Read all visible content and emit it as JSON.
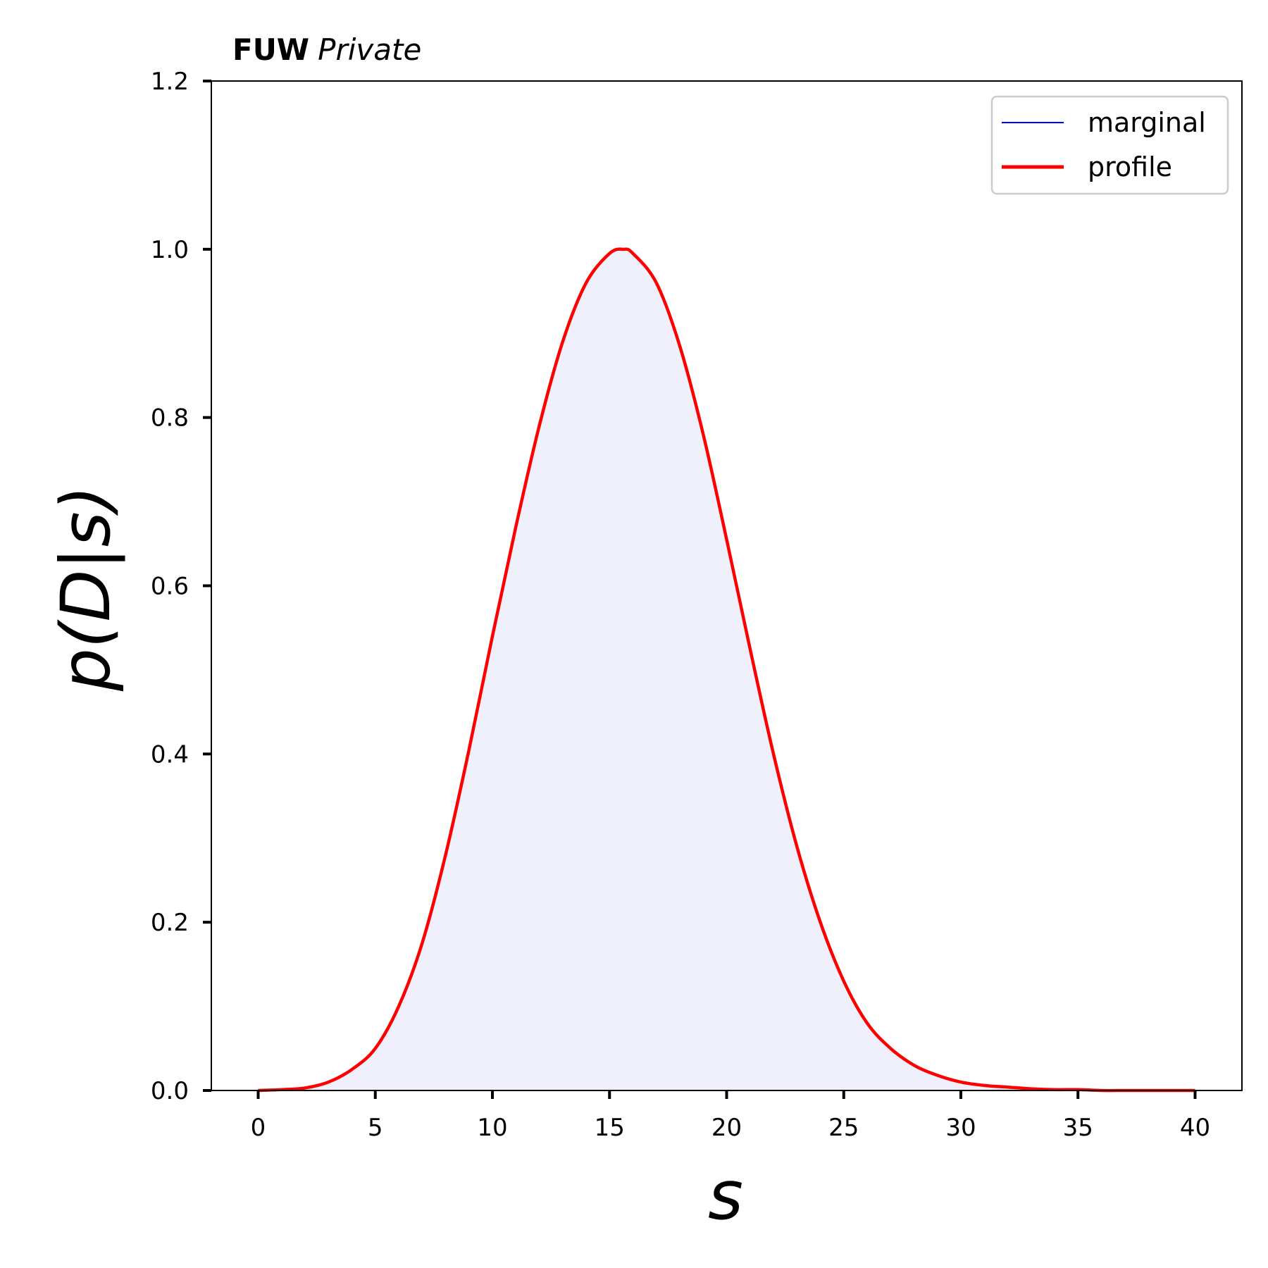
{
  "header": {
    "bold": "FUW",
    "italic": "Private"
  },
  "colors": {
    "marginal": "#0000ff",
    "profile": "#ff0000",
    "fill": "#f0f0fc"
  },
  "chart_data": {
    "type": "line",
    "xlabel": "s",
    "ylabel": "p(D|s)",
    "xlim": [
      -2,
      42
    ],
    "ylim": [
      0,
      1.2
    ],
    "xticks": [
      "0",
      "5",
      "10",
      "15",
      "20",
      "25",
      "30",
      "35",
      "40"
    ],
    "yticks": [
      "0.0",
      "0.2",
      "0.4",
      "0.6",
      "0.8",
      "1.0",
      "1.2"
    ],
    "legend": {
      "position": "upper right",
      "entries": [
        "marginal",
        "profile"
      ]
    },
    "grid": false,
    "series": [
      {
        "name": "marginal",
        "x": [
          0,
          1,
          2,
          3,
          4,
          5,
          6,
          7,
          8,
          9,
          10,
          11,
          12,
          13,
          14,
          15,
          15.6,
          16,
          17,
          18,
          19,
          20,
          21,
          22,
          23,
          24,
          25,
          26,
          27,
          28,
          29,
          30,
          31,
          32,
          33,
          34,
          35,
          36,
          37,
          38,
          39,
          40
        ],
        "y": [
          0,
          0.001,
          0.003,
          0.01,
          0.025,
          0.05,
          0.1,
          0.175,
          0.28,
          0.405,
          0.54,
          0.67,
          0.79,
          0.89,
          0.96,
          0.995,
          1.0,
          0.995,
          0.96,
          0.885,
          0.78,
          0.655,
          0.525,
          0.4,
          0.29,
          0.2,
          0.13,
          0.08,
          0.05,
          0.03,
          0.018,
          0.01,
          0.006,
          0.004,
          0.002,
          0.001,
          0.001,
          0,
          0,
          0,
          0,
          0
        ]
      },
      {
        "name": "profile",
        "x": [
          0,
          1,
          2,
          3,
          4,
          5,
          6,
          7,
          8,
          9,
          10,
          11,
          12,
          13,
          14,
          15,
          15.6,
          16,
          17,
          18,
          19,
          20,
          21,
          22,
          23,
          24,
          25,
          26,
          27,
          28,
          29,
          30,
          31,
          32,
          33,
          34,
          35,
          36,
          37,
          38,
          39,
          40
        ],
        "y": [
          0,
          0.001,
          0.003,
          0.01,
          0.025,
          0.05,
          0.1,
          0.175,
          0.28,
          0.405,
          0.54,
          0.67,
          0.79,
          0.89,
          0.96,
          0.995,
          1.0,
          0.995,
          0.96,
          0.885,
          0.78,
          0.655,
          0.525,
          0.4,
          0.29,
          0.2,
          0.13,
          0.08,
          0.05,
          0.03,
          0.018,
          0.01,
          0.006,
          0.004,
          0.002,
          0.001,
          0.001,
          0,
          0,
          0,
          0,
          0
        ]
      }
    ]
  }
}
